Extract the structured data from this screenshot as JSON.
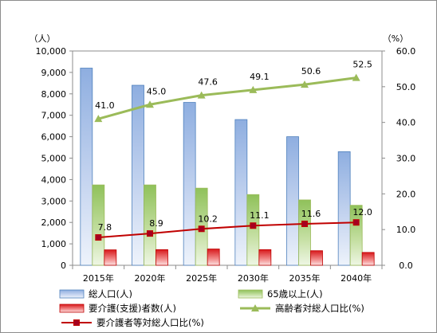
{
  "chart_data": {
    "type": "bar",
    "categories": [
      "2015年",
      "2020年",
      "2025年",
      "2030年",
      "2035年",
      "2040年"
    ],
    "y_left_unit": "（人）",
    "y_right_unit": "（%）",
    "y_left_ticks": [
      "0",
      "1,000",
      "2,000",
      "3,000",
      "4,000",
      "5,000",
      "6,000",
      "7,000",
      "8,000",
      "9,000",
      "10,000"
    ],
    "y_right_ticks": [
      "0.0",
      "10.0",
      "20.0",
      "30.0",
      "40.0",
      "50.0",
      "60.0"
    ],
    "ylim_left": [
      0,
      10000
    ],
    "ylim_right": [
      0,
      60
    ],
    "series": [
      {
        "name": "総人口(人)",
        "kind": "bar",
        "axis": "left",
        "color": "#4f81bd",
        "values": [
          9200,
          8400,
          7600,
          6800,
          6000,
          5300
        ]
      },
      {
        "name": "65歳以上(人)",
        "kind": "bar",
        "axis": "left",
        "color": "#9bbb59",
        "values": [
          3750,
          3750,
          3600,
          3300,
          3050,
          2800
        ]
      },
      {
        "name": "要介護(支援)者数(人)",
        "kind": "bar",
        "axis": "left",
        "color": "#c00000",
        "values": [
          720,
          730,
          760,
          730,
          680,
          600
        ]
      },
      {
        "name": "高齢者対総人口比(%)",
        "kind": "line",
        "axis": "right",
        "color": "#9bbb59",
        "values": [
          41.0,
          45.0,
          47.6,
          49.1,
          50.6,
          52.5
        ],
        "labels": [
          "41.0",
          "45.0",
          "47.6",
          "49.1",
          "50.6",
          "52.5"
        ]
      },
      {
        "name": "要介護者等対総人口比(%)",
        "kind": "line",
        "axis": "right",
        "color": "#c00000",
        "values": [
          7.8,
          8.9,
          10.2,
          11.1,
          11.6,
          12.0
        ],
        "labels": [
          "7.8",
          "8.9",
          "10.2",
          "11.1",
          "11.6",
          "12.0"
        ]
      }
    ],
    "grid": false,
    "legend_position": "bottom"
  }
}
